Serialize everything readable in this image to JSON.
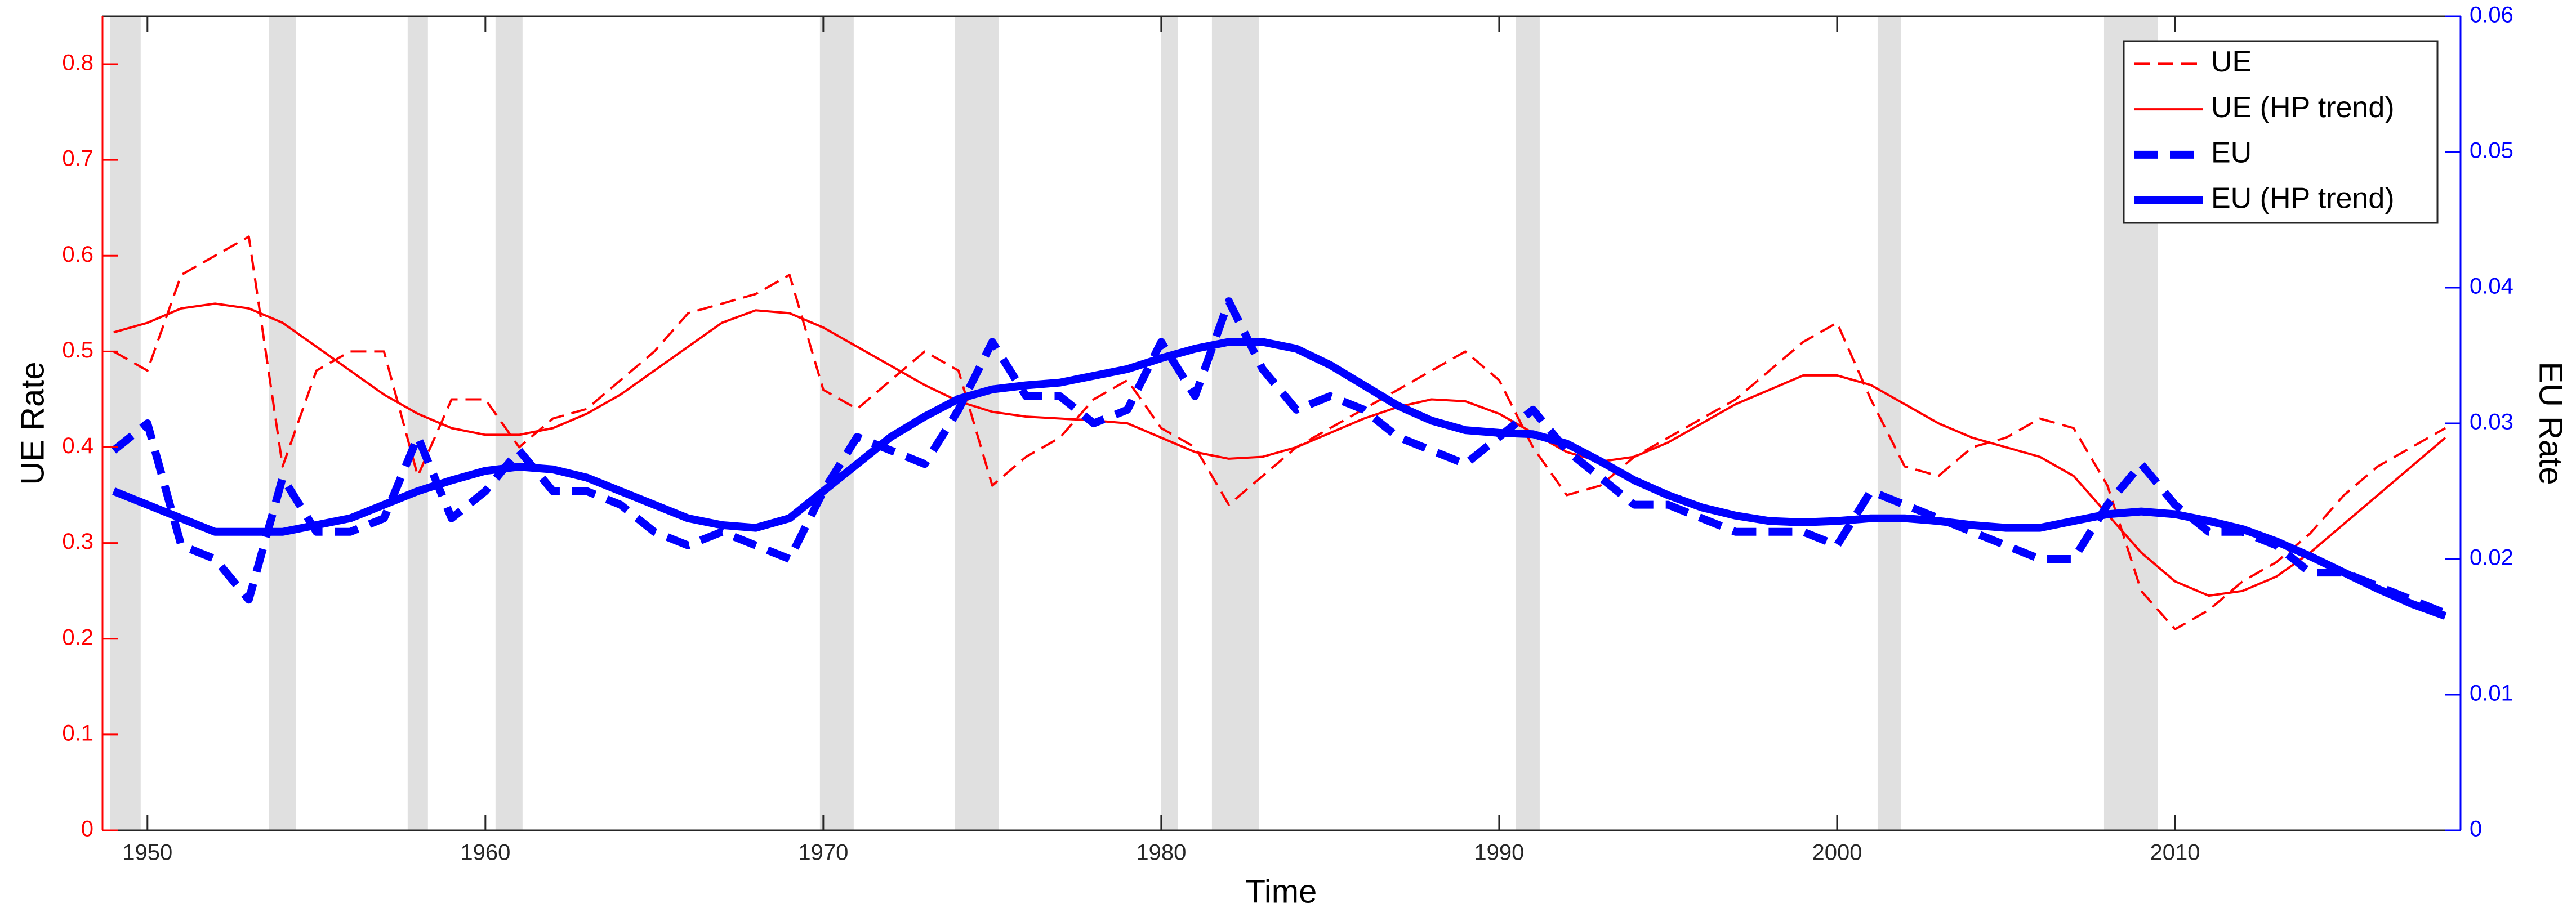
{
  "chart_data": {
    "type": "line",
    "x_label": "Time",
    "y_label": "UE Rate",
    "y2_label": "EU Rate",
    "x": [
      1949,
      1950,
      1951,
      1952,
      1953,
      1954,
      1955,
      1956,
      1957,
      1958,
      1959,
      1960,
      1961,
      1962,
      1963,
      1964,
      1965,
      1966,
      1967,
      1968,
      1969,
      1970,
      1971,
      1972,
      1973,
      1974,
      1975,
      1976,
      1977,
      1978,
      1979,
      1980,
      1981,
      1982,
      1983,
      1984,
      1985,
      1986,
      1987,
      1988,
      1989,
      1990,
      1991,
      1992,
      1993,
      1994,
      1995,
      1996,
      1997,
      1998,
      1999,
      2000,
      2001,
      2002,
      2003,
      2004,
      2005,
      2006,
      2007,
      2008,
      2009,
      2010,
      2011,
      2012,
      2013,
      2014,
      2015,
      2016,
      2017,
      2018
    ],
    "series": [
      {
        "name": "UE",
        "color": "#ff0000",
        "line_style": "dashed",
        "weight": "thin",
        "axis": "y",
        "values": [
          0.5,
          0.48,
          0.58,
          0.6,
          0.62,
          0.38,
          0.48,
          0.5,
          0.5,
          0.37,
          0.45,
          0.45,
          0.4,
          0.43,
          0.44,
          0.47,
          0.5,
          0.54,
          0.55,
          0.56,
          0.58,
          0.46,
          0.44,
          0.47,
          0.5,
          0.48,
          0.36,
          0.39,
          0.41,
          0.45,
          0.47,
          0.42,
          0.4,
          0.34,
          0.37,
          0.4,
          0.42,
          0.44,
          0.46,
          0.48,
          0.5,
          0.47,
          0.4,
          0.35,
          0.36,
          0.39,
          0.41,
          0.43,
          0.45,
          0.48,
          0.51,
          0.53,
          0.45,
          0.38,
          0.37,
          0.4,
          0.41,
          0.43,
          0.42,
          0.36,
          0.25,
          0.21,
          0.23,
          0.26,
          0.28,
          0.31,
          0.35,
          0.38,
          0.4,
          0.42
        ]
      },
      {
        "name": "UE (HP trend)",
        "color": "#ff0000",
        "line_style": "solid",
        "weight": "thin",
        "axis": "y",
        "values": [
          0.52,
          0.53,
          0.545,
          0.55,
          0.545,
          0.53,
          0.505,
          0.48,
          0.455,
          0.435,
          0.42,
          0.413,
          0.413,
          0.42,
          0.435,
          0.455,
          0.48,
          0.505,
          0.53,
          0.543,
          0.54,
          0.525,
          0.505,
          0.485,
          0.465,
          0.448,
          0.437,
          0.432,
          0.43,
          0.428,
          0.425,
          0.41,
          0.395,
          0.388,
          0.39,
          0.4,
          0.415,
          0.43,
          0.442,
          0.45,
          0.448,
          0.435,
          0.415,
          0.395,
          0.385,
          0.39,
          0.405,
          0.425,
          0.445,
          0.46,
          0.475,
          0.475,
          0.465,
          0.445,
          0.425,
          0.41,
          0.4,
          0.39,
          0.37,
          0.33,
          0.29,
          0.26,
          0.245,
          0.25,
          0.265,
          0.29,
          0.32,
          0.35,
          0.38,
          0.41
        ]
      },
      {
        "name": "EU",
        "color": "#0000ff",
        "line_style": "dashed",
        "weight": "thick",
        "axis": "y2",
        "values": [
          0.028,
          0.03,
          0.021,
          0.02,
          0.017,
          0.026,
          0.022,
          0.022,
          0.023,
          0.029,
          0.023,
          0.025,
          0.028,
          0.025,
          0.025,
          0.024,
          0.022,
          0.021,
          0.022,
          0.021,
          0.02,
          0.025,
          0.029,
          0.028,
          0.027,
          0.031,
          0.036,
          0.032,
          0.032,
          0.03,
          0.031,
          0.036,
          0.032,
          0.039,
          0.034,
          0.031,
          0.032,
          0.031,
          0.029,
          0.028,
          0.027,
          0.029,
          0.031,
          0.028,
          0.026,
          0.024,
          0.024,
          0.023,
          0.022,
          0.022,
          0.022,
          0.021,
          0.025,
          0.024,
          0.023,
          0.022,
          0.021,
          0.02,
          0.02,
          0.024,
          0.027,
          0.024,
          0.022,
          0.022,
          0.021,
          0.019,
          0.019,
          0.018,
          0.017,
          0.016
        ]
      },
      {
        "name": "EU (HP trend)",
        "color": "#0000ff",
        "line_style": "solid",
        "weight": "thick",
        "axis": "y2",
        "values": [
          0.025,
          0.024,
          0.023,
          0.022,
          0.022,
          0.022,
          0.0225,
          0.023,
          0.024,
          0.025,
          0.0258,
          0.0265,
          0.0268,
          0.0266,
          0.026,
          0.025,
          0.024,
          0.023,
          0.0225,
          0.0223,
          0.023,
          0.025,
          0.027,
          0.029,
          0.0305,
          0.0318,
          0.0325,
          0.0328,
          0.033,
          0.0335,
          0.034,
          0.0348,
          0.0355,
          0.036,
          0.036,
          0.0355,
          0.0343,
          0.0328,
          0.0313,
          0.0302,
          0.0295,
          0.0293,
          0.0292,
          0.0285,
          0.0272,
          0.0258,
          0.0247,
          0.0238,
          0.0232,
          0.0228,
          0.0227,
          0.0228,
          0.023,
          0.023,
          0.0228,
          0.0225,
          0.0223,
          0.0223,
          0.0228,
          0.0233,
          0.0235,
          0.0233,
          0.0228,
          0.0222,
          0.0213,
          0.0202,
          0.019,
          0.0178,
          0.0167,
          0.0158
        ]
      }
    ],
    "recessions": [
      [
        1948.9,
        1949.8
      ],
      [
        1953.6,
        1954.4
      ],
      [
        1957.7,
        1958.3
      ],
      [
        1960.3,
        1961.1
      ],
      [
        1969.9,
        1970.9
      ],
      [
        1973.9,
        1975.2
      ],
      [
        1980.0,
        1980.5
      ],
      [
        1981.5,
        1982.9
      ],
      [
        1990.5,
        1991.2
      ],
      [
        2001.2,
        2001.9
      ],
      [
        2007.9,
        2009.5
      ]
    ],
    "recession_color": "#e0e0e0",
    "xlim": [
      1948.67,
      2018.45
    ],
    "xticks": [
      1950,
      1960,
      1970,
      1980,
      1990,
      2000,
      2010
    ],
    "ylim": [
      0,
      0.85
    ],
    "yticks": [
      0,
      0.1,
      0.2,
      0.3,
      0.4,
      0.5,
      0.6,
      0.7,
      0.8
    ],
    "y2lim": [
      0,
      0.06
    ],
    "y2ticks": [
      0,
      0.01,
      0.02,
      0.03,
      0.04,
      0.05,
      0.06
    ],
    "y_axis_color": "#ff0000",
    "y2_axis_color": "#0000ff",
    "legend": "upper right"
  }
}
